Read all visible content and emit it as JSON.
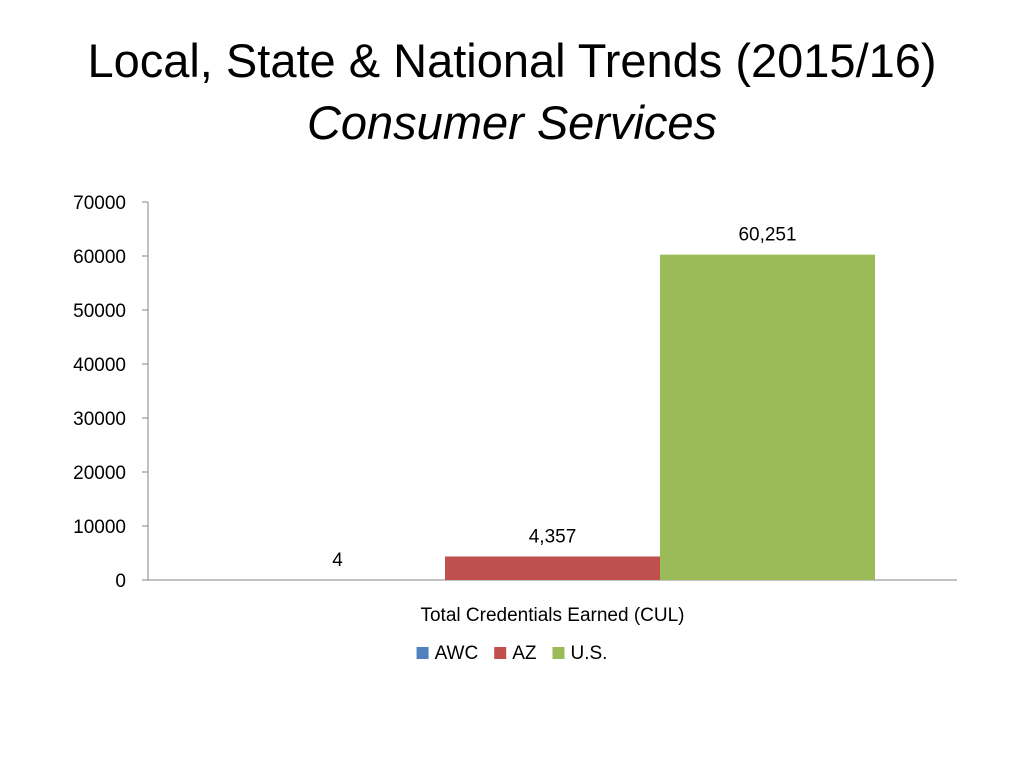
{
  "slide": {
    "title_line1": "Local, State & National Trends (2015/16)",
    "title_line2": "Consumer Services"
  },
  "chart_data": {
    "type": "bar",
    "title": "",
    "xlabel": "",
    "ylabel": "",
    "categories": [
      "Total Credentials Earned (CUL)"
    ],
    "series": [
      {
        "name": "AWC",
        "values": [
          4
        ],
        "label": "4",
        "color": "#4F81BD"
      },
      {
        "name": "AZ",
        "values": [
          4357
        ],
        "label": "4,357",
        "color": "#C0504D"
      },
      {
        "name": "U.S.",
        "values": [
          60251
        ],
        "label": "60,251",
        "color": "#9BBB59"
      }
    ],
    "yticks": [
      0,
      10000,
      20000,
      30000,
      40000,
      50000,
      60000,
      70000
    ],
    "ylim": [
      0,
      70000
    ],
    "grid": false,
    "legend_position": "bottom"
  }
}
